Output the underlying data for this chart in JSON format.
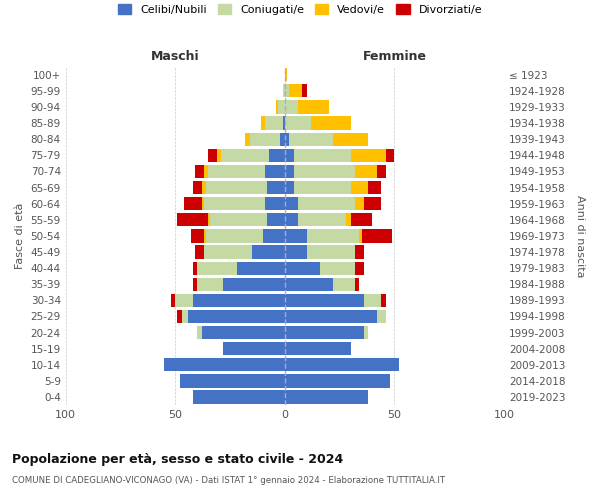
{
  "age_groups_bottom_to_top": [
    "0-4",
    "5-9",
    "10-14",
    "15-19",
    "20-24",
    "25-29",
    "30-34",
    "35-39",
    "40-44",
    "45-49",
    "50-54",
    "55-59",
    "60-64",
    "65-69",
    "70-74",
    "75-79",
    "80-84",
    "85-89",
    "90-94",
    "95-99",
    "100+"
  ],
  "birth_years_bottom_to_top": [
    "2019-2023",
    "2014-2018",
    "2009-2013",
    "2004-2008",
    "1999-2003",
    "1994-1998",
    "1989-1993",
    "1984-1988",
    "1979-1983",
    "1974-1978",
    "1969-1973",
    "1964-1968",
    "1959-1963",
    "1954-1958",
    "1949-1953",
    "1944-1948",
    "1939-1943",
    "1934-1938",
    "1929-1933",
    "1924-1928",
    "≤ 1923"
  ],
  "maschi_celibi": [
    42,
    48,
    55,
    28,
    38,
    44,
    42,
    28,
    22,
    15,
    10,
    8,
    9,
    8,
    9,
    7,
    2,
    1,
    0,
    0,
    0
  ],
  "maschi_coniugati": [
    0,
    0,
    0,
    0,
    2,
    3,
    8,
    12,
    18,
    22,
    26,
    26,
    28,
    28,
    26,
    22,
    14,
    8,
    3,
    1,
    0
  ],
  "maschi_vedovi": [
    0,
    0,
    0,
    0,
    0,
    0,
    0,
    0,
    0,
    0,
    1,
    1,
    1,
    2,
    2,
    2,
    2,
    2,
    1,
    0,
    0
  ],
  "maschi_divorziati": [
    0,
    0,
    0,
    0,
    0,
    2,
    2,
    2,
    2,
    4,
    6,
    14,
    8,
    4,
    4,
    4,
    0,
    0,
    0,
    0,
    0
  ],
  "femmine_nubili": [
    38,
    48,
    52,
    30,
    36,
    42,
    36,
    22,
    16,
    10,
    10,
    6,
    6,
    4,
    4,
    4,
    2,
    0,
    0,
    0,
    0
  ],
  "femmine_coniugate": [
    0,
    0,
    0,
    0,
    2,
    4,
    8,
    10,
    16,
    22,
    24,
    22,
    26,
    26,
    28,
    26,
    20,
    12,
    6,
    2,
    0
  ],
  "femmine_vedove": [
    0,
    0,
    0,
    0,
    0,
    0,
    0,
    0,
    0,
    0,
    1,
    2,
    4,
    8,
    10,
    16,
    16,
    18,
    14,
    6,
    1
  ],
  "femmine_divorziate": [
    0,
    0,
    0,
    0,
    0,
    0,
    2,
    2,
    4,
    4,
    14,
    10,
    8,
    6,
    4,
    4,
    0,
    0,
    0,
    2,
    0
  ],
  "color_celibi": "#4472c4",
  "color_coniugati": "#c5d9a4",
  "color_vedovi": "#ffc000",
  "color_divorziati": "#cc0000",
  "legend_labels": [
    "Celibi/Nubili",
    "Coniugati/e",
    "Vedovi/e",
    "Divorziati/e"
  ],
  "title": "Popolazione per età, sesso e stato civile - 2024",
  "subtitle": "COMUNE DI CADEGLIANO-VICONAGO (VA) - Dati ISTAT 1° gennaio 2024 - Elaborazione TUTTITALIA.IT",
  "label_maschi": "Maschi",
  "label_femmine": "Femmine",
  "ylabel_left": "Fasce di età",
  "ylabel_right": "Anni di nascita",
  "xlim": 100,
  "bg_color": "#ffffff",
  "grid_color": "#cccccc",
  "text_color": "#555555",
  "title_color": "#111111",
  "bar_height": 0.82
}
